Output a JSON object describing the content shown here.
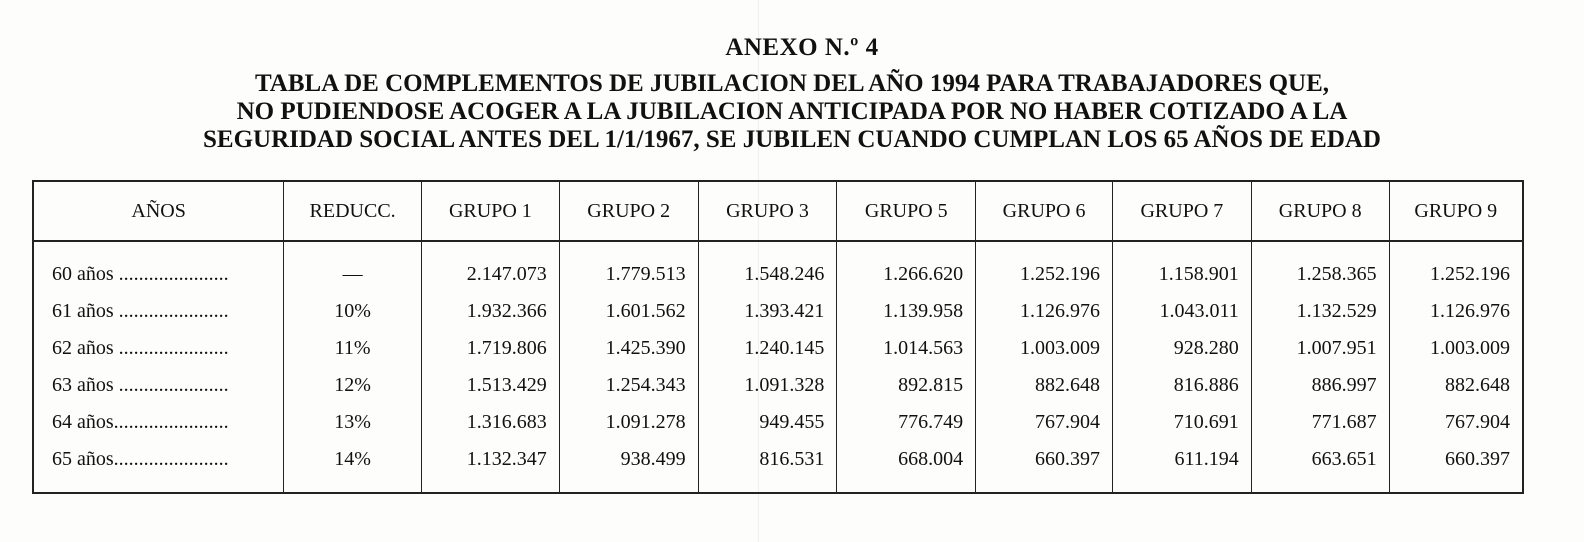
{
  "annex_title": "ANEXO N.º 4",
  "table_title_lines": [
    "TABLA DE COMPLEMENTOS DE JUBILACION DEL AÑO 1994 PARA TRABAJADORES QUE,",
    "NO PUDIENDOSE ACOGER A LA JUBILACION ANTICIPADA POR NO HABER COTIZADO A LA",
    "SEGURIDAD SOCIAL ANTES DEL 1/1/1967, SE JUBILEN CUANDO CUMPLAN LOS 65 AÑOS DE EDAD"
  ],
  "table": {
    "headers": [
      "AÑOS",
      "REDUCC.",
      "GRUPO 1",
      "GRUPO 2",
      "GRUPO 3",
      "GRUPO 5",
      "GRUPO 6",
      "GRUPO 7",
      "GRUPO 8",
      "GRUPO 9"
    ],
    "rows": [
      [
        "60 años ......................",
        "—",
        "2.147.073",
        "1.779.513",
        "1.548.246",
        "1.266.620",
        "1.252.196",
        "1.158.901",
        "1.258.365",
        "1.252.196"
      ],
      [
        "61 años ......................",
        "10%",
        "1.932.366",
        "1.601.562",
        "1.393.421",
        "1.139.958",
        "1.126.976",
        "1.043.011",
        "1.132.529",
        "1.126.976"
      ],
      [
        "62 años ......................",
        "11%",
        "1.719.806",
        "1.425.390",
        "1.240.145",
        "1.014.563",
        "1.003.009",
        "928.280",
        "1.007.951",
        "1.003.009"
      ],
      [
        "63 años ......................",
        "12%",
        "1.513.429",
        "1.254.343",
        "1.091.328",
        "892.815",
        "882.648",
        "816.886",
        "886.997",
        "882.648"
      ],
      [
        "64 años.......................",
        "13%",
        "1.316.683",
        "1.091.278",
        "949.455",
        "776.749",
        "767.904",
        "710.691",
        "771.687",
        "767.904"
      ],
      [
        "65 años.......................",
        "14%",
        "1.132.347",
        "938.499",
        "816.531",
        "668.004",
        "660.397",
        "611.194",
        "663.651",
        "660.397"
      ]
    ]
  }
}
